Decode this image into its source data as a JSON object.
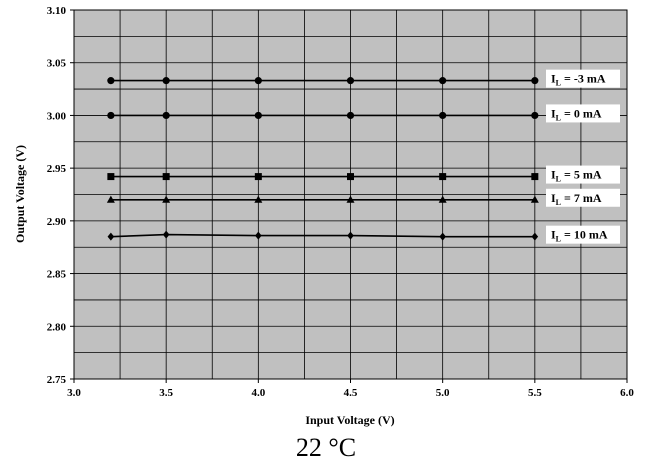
{
  "chart_data": {
    "type": "line",
    "title": "",
    "xlabel": "Input Voltage (V)",
    "ylabel": "Output Voltage (V)",
    "xlim": [
      3.0,
      6.0
    ],
    "ylim": [
      2.75,
      3.1
    ],
    "x_ticks": [
      "3.0",
      "3.5",
      "4.0",
      "4.5",
      "5.0",
      "5.5",
      "6.0"
    ],
    "y_ticks": [
      "3.10",
      "3.05",
      "3.00",
      "2.95",
      "2.90",
      "2.85",
      "2.80",
      "2.75"
    ],
    "grid": true,
    "plot_background": "#c0c0c0",
    "line_color": "#000000",
    "x": [
      3.2,
      3.5,
      4.0,
      4.5,
      5.0,
      5.5
    ],
    "series": [
      {
        "name": "I_L = -3 mA",
        "label_main": "I",
        "label_sub": "L",
        "label_rest": " = -3 mA",
        "marker": "circle",
        "values": [
          3.033,
          3.033,
          3.033,
          3.033,
          3.033,
          3.033
        ]
      },
      {
        "name": "I_L = 0 mA",
        "label_main": "I",
        "label_sub": "L",
        "label_rest": " = 0 mA",
        "marker": "circle",
        "values": [
          3.0,
          3.0,
          3.0,
          3.0,
          3.0,
          3.0
        ]
      },
      {
        "name": "I_L = 5 mA",
        "label_main": "I",
        "label_sub": "L",
        "label_rest": " = 5 mA",
        "marker": "square",
        "values": [
          2.942,
          2.942,
          2.942,
          2.942,
          2.942,
          2.942
        ]
      },
      {
        "name": "I_L = 7 mA",
        "label_main": "I",
        "label_sub": "L",
        "label_rest": " = 7 mA",
        "marker": "triangle",
        "values": [
          2.92,
          2.92,
          2.92,
          2.92,
          2.92,
          2.92
        ]
      },
      {
        "name": "I_L = 10 mA",
        "label_main": "I",
        "label_sub": "L",
        "label_rest": " = 10 mA",
        "marker": "diamond",
        "values": [
          2.885,
          2.887,
          2.886,
          2.886,
          2.885,
          2.885
        ]
      }
    ]
  },
  "caption": "22 °C"
}
